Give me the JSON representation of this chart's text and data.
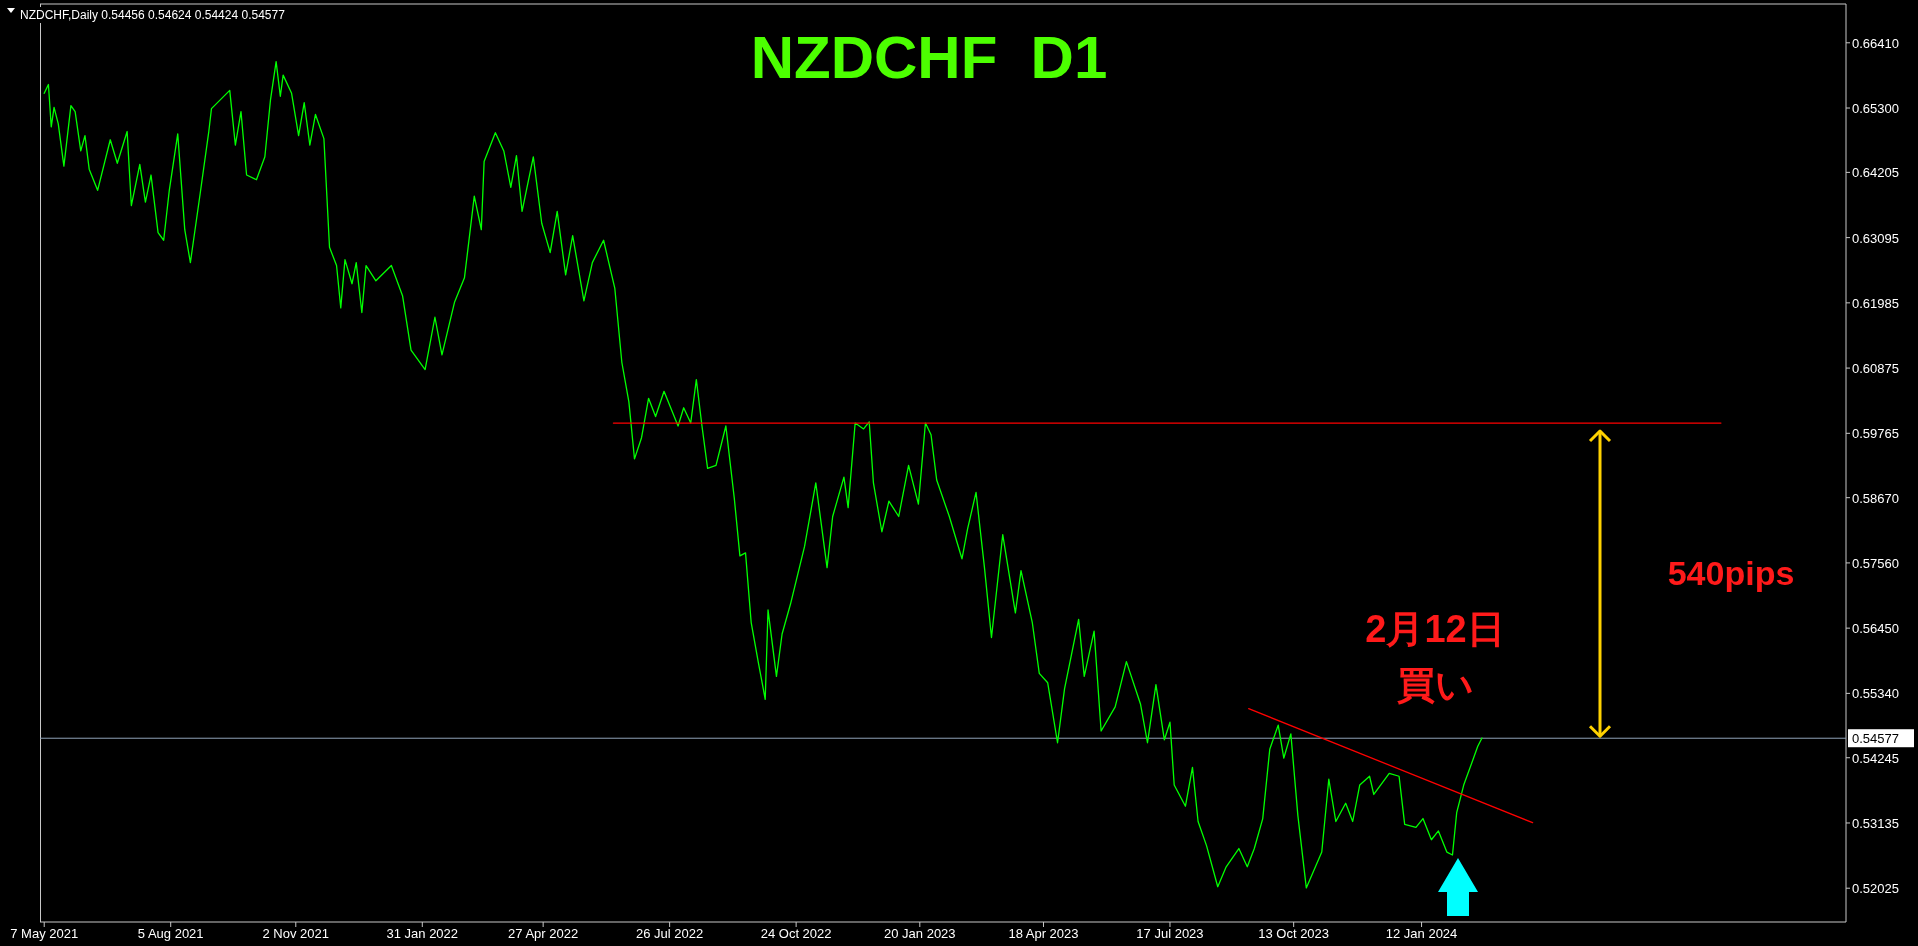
{
  "chart_data": {
    "type": "line",
    "title": "NZDCHF  D1",
    "annotations": [
      "NZDCHF,Daily 0.54456 0.54624 0.54424 0.54577",
      "540pips",
      "2月12日",
      "買い"
    ],
    "xlim": [
      "2021-05-04",
      "2024-11-09"
    ],
    "xticks": [
      {
        "value": "2021-05-07",
        "label": "7 May 2021"
      },
      {
        "value": "2021-08-05",
        "label": "5 Aug 2021"
      },
      {
        "value": "2021-11-02",
        "label": "2 Nov 2021"
      },
      {
        "value": "2022-01-31",
        "label": "31 Jan 2022"
      },
      {
        "value": "2022-04-27",
        "label": "27 Apr 2022"
      },
      {
        "value": "2022-07-26",
        "label": "26 Jul 2022"
      },
      {
        "value": "2022-10-24",
        "label": "24 Oct 2022"
      },
      {
        "value": "2023-01-20",
        "label": "20 Jan 2023"
      },
      {
        "value": "2023-04-18",
        "label": "18 Apr 2023"
      },
      {
        "value": "2023-07-17",
        "label": "17 Jul 2023"
      },
      {
        "value": "2023-10-13",
        "label": "13 Oct 2023"
      },
      {
        "value": "2024-01-12",
        "label": "12 Jan 2024"
      }
    ],
    "ylim": [
      0.5145,
      0.6707
    ],
    "yticks": [
      {
        "value": 0.6641,
        "label": "0.66410"
      },
      {
        "value": 0.653,
        "label": "0.65300"
      },
      0.64205,
      0.63095,
      0.61985,
      0.60875,
      0.59765,
      {
        "value": 0.5867,
        "label": "0.58670"
      },
      {
        "value": 0.5756,
        "label": "0.57560"
      },
      {
        "value": 0.5645,
        "label": "0.56450"
      },
      {
        "value": 0.5534,
        "label": "0.55340"
      },
      0.54245,
      0.53135,
      0.52025
    ],
    "grid": false,
    "ref_lines": [
      {
        "axis": "y",
        "value": 0.54577,
        "label": "0.54577",
        "color": "#8fa3b8"
      }
    ],
    "series": [
      {
        "color": "#00ff00",
        "x": [
          "2021-05-07",
          "2021-05-10",
          "2021-05-12",
          "2021-05-14",
          "2021-05-17",
          "2021-05-21",
          "2021-05-26",
          "2021-05-29",
          "2021-06-02",
          "2021-06-05",
          "2021-06-08",
          "2021-06-14",
          "2021-06-23",
          "2021-06-28",
          "2021-07-05",
          "2021-07-08",
          "2021-07-14",
          "2021-07-18",
          "2021-07-22",
          "2021-07-27",
          "2021-07-31",
          "2021-08-04",
          "2021-08-10",
          "2021-08-15",
          "2021-08-19",
          "2021-08-26",
          "2021-09-01",
          "2021-09-03",
          "2021-09-16",
          "2021-09-20",
          "2021-09-24",
          "2021-09-28",
          "2021-10-05",
          "2021-10-11",
          "2021-10-15",
          "2021-10-19",
          "2021-10-22",
          "2021-10-24",
          "2021-10-30",
          "2021-11-04",
          "2021-11-08",
          "2021-11-12",
          "2021-11-16",
          "2021-11-22",
          "2021-11-26",
          "2021-12-01",
          "2021-12-04",
          "2021-12-07",
          "2021-12-12",
          "2021-12-15",
          "2021-12-19",
          "2021-12-22",
          "2021-12-29",
          "2022-01-09",
          "2022-01-17",
          "2022-01-23",
          "2022-02-02",
          "2022-02-09",
          "2022-02-14",
          "2022-02-23",
          "2022-03-02",
          "2022-03-09",
          "2022-03-14",
          "2022-03-16",
          "2022-03-24",
          "2022-03-30",
          "2022-04-04",
          "2022-04-08",
          "2022-04-12",
          "2022-04-20",
          "2022-04-26",
          "2022-05-02",
          "2022-05-07",
          "2022-05-13",
          "2022-05-18",
          "2022-05-26",
          "2022-06-01",
          "2022-06-09",
          "2022-06-17",
          "2022-06-22",
          "2022-06-27",
          "2022-07-01",
          "2022-07-06",
          "2022-07-11",
          "2022-07-16",
          "2022-07-22",
          "2022-08-01",
          "2022-08-05",
          "2022-08-10",
          "2022-08-14",
          "2022-08-18",
          "2022-08-22",
          "2022-08-28",
          "2022-09-04",
          "2022-09-10",
          "2022-09-14",
          "2022-09-18",
          "2022-09-22",
          "2022-09-27",
          "2022-10-02",
          "2022-10-04",
          "2022-10-10",
          "2022-10-14",
          "2022-10-20",
          "2022-10-30",
          "2022-11-07",
          "2022-11-15",
          "2022-11-19",
          "2022-11-27",
          "2022-11-30",
          "2022-12-05",
          "2022-12-11",
          "2022-12-15",
          "2022-12-18",
          "2022-12-24",
          "2022-12-29",
          "2023-01-05",
          "2023-01-12",
          "2023-01-19",
          "2023-01-24",
          "2023-01-28",
          "2023-02-01",
          "2023-02-10",
          "2023-02-19",
          "2023-02-23",
          "2023-03-01",
          "2023-03-07",
          "2023-03-12",
          "2023-03-20",
          "2023-03-29",
          "2023-04-02",
          "2023-04-10",
          "2023-04-15",
          "2023-04-21",
          "2023-04-28",
          "2023-05-03",
          "2023-05-13",
          "2023-05-17",
          "2023-05-24",
          "2023-05-29",
          "2023-06-08",
          "2023-06-16",
          "2023-06-26",
          "2023-07-01",
          "2023-07-07",
          "2023-07-13",
          "2023-07-17",
          "2023-07-20",
          "2023-07-28",
          "2023-08-02",
          "2023-08-06",
          "2023-08-12",
          "2023-08-20",
          "2023-08-26",
          "2023-09-04",
          "2023-09-10",
          "2023-09-15",
          "2023-09-21",
          "2023-09-26",
          "2023-10-02",
          "2023-10-06",
          "2023-10-11",
          "2023-10-16",
          "2023-10-22",
          "2023-11-02",
          "2023-11-07",
          "2023-11-12",
          "2023-11-19",
          "2023-11-24",
          "2023-11-29",
          "2023-12-06",
          "2023-12-09",
          "2023-12-20",
          "2023-12-27",
          "2023-12-31",
          "2024-01-08",
          "2024-01-13",
          "2024-01-19",
          "2024-01-24",
          "2024-01-30",
          "2024-02-03",
          "2024-02-06",
          "2024-02-11",
          "2024-02-18",
          "2024-02-21",
          "2024-02-24"
        ],
        "values": [
          0.6555,
          0.657,
          0.6498,
          0.6531,
          0.6503,
          0.6431,
          0.6534,
          0.6524,
          0.6457,
          0.6483,
          0.6426,
          0.639,
          0.6476,
          0.6436,
          0.649,
          0.6364,
          0.6434,
          0.637,
          0.6416,
          0.6318,
          0.6305,
          0.639,
          0.6486,
          0.6323,
          0.6267,
          0.6385,
          0.6488,
          0.6529,
          0.656,
          0.6467,
          0.6524,
          0.6416,
          0.6408,
          0.6447,
          0.6544,
          0.6609,
          0.655,
          0.6586,
          0.6555,
          0.6483,
          0.6539,
          0.6467,
          0.6519,
          0.6478,
          0.6293,
          0.6262,
          0.619,
          0.6272,
          0.6231,
          0.6267,
          0.6182,
          0.6262,
          0.6236,
          0.6262,
          0.621,
          0.6118,
          0.6085,
          0.6174,
          0.611,
          0.62,
          0.6241,
          0.638,
          0.6323,
          0.6439,
          0.6488,
          0.6457,
          0.6395,
          0.6449,
          0.6354,
          0.6447,
          0.6334,
          0.6284,
          0.6354,
          0.6246,
          0.6313,
          0.6202,
          0.6267,
          0.6305,
          0.6223,
          0.6097,
          0.603,
          0.5933,
          0.5969,
          0.6036,
          0.6005,
          0.6048,
          0.5989,
          0.602,
          0.5994,
          0.6068,
          0.5989,
          0.5917,
          0.5922,
          0.5989,
          0.5866,
          0.5768,
          0.5773,
          0.5655,
          0.5588,
          0.5524,
          0.5676,
          0.5563,
          0.5635,
          0.5686,
          0.5784,
          0.5892,
          0.5748,
          0.5835,
          0.5902,
          0.585,
          0.5994,
          0.5984,
          0.5996,
          0.5892,
          0.5809,
          0.5861,
          0.5835,
          0.5922,
          0.5856,
          0.5994,
          0.5974,
          0.5897,
          0.5835,
          0.5763,
          0.5814,
          0.5876,
          0.5748,
          0.5629,
          0.5804,
          0.5671,
          0.5743,
          0.5655,
          0.5568,
          0.5552,
          0.545,
          0.5542,
          0.566,
          0.5563,
          0.564,
          0.547,
          0.5511,
          0.5588,
          0.5516,
          0.545,
          0.5549,
          0.5455,
          0.5485,
          0.5378,
          0.5342,
          0.5408,
          0.5316,
          0.5275,
          0.5205,
          0.5239,
          0.527,
          0.5239,
          0.527,
          0.5321,
          0.5439,
          0.548,
          0.5424,
          0.5465,
          0.5326,
          0.5203,
          0.5264,
          0.5388,
          0.5316,
          0.5347,
          0.5316,
          0.5378,
          0.5393,
          0.5362,
          0.5398,
          0.5393,
          0.5311,
          0.5306,
          0.5321,
          0.5285,
          0.53,
          0.5264,
          0.5259,
          0.5331,
          0.5378,
          0.5424,
          0.5444,
          0.5458
        ]
      },
      {
        "color": "#ff0000",
        "x": [
          "2022-06-16",
          "2024-08-12"
        ],
        "values": [
          0.5994,
          0.5994
        ]
      },
      {
        "color": "#ff0000",
        "x": [
          "2023-09-11",
          "2024-03-31"
        ],
        "values": [
          0.5508,
          0.5314
        ]
      }
    ]
  }
}
